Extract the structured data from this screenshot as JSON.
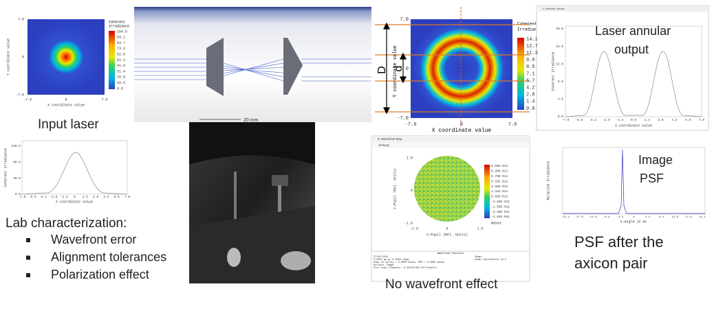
{
  "input_map": {
    "title": [
      "Coherent",
      "Irradiance"
    ],
    "colorbar": [
      "104.6",
      "94.1",
      "83.7",
      "73.2",
      "62.8",
      "52.3",
      "41.8",
      "31.4",
      "20.9",
      "10.5",
      "0.0"
    ],
    "y_ticks": [
      "7.0",
      "0",
      "-7.0"
    ],
    "x_ticks": [
      "-7.0",
      "0",
      "7.0"
    ],
    "x_label": "X coordinate value",
    "y_label": "Y coordinate value"
  },
  "ray_trace": {
    "scale": "20 mm"
  },
  "annular_map": {
    "title": [
      "Coherent",
      "Irradiance"
    ],
    "colorbar": [
      "14.1",
      "12.7",
      "11.3",
      "9.9",
      "8.5",
      "7.1",
      "5.7",
      "4.2",
      "2.8",
      "1.4",
      "0.0"
    ],
    "y_ticks": [
      "7.0",
      "0",
      "-7.0"
    ],
    "x_ticks": [
      "-7.0",
      "0",
      "7.0"
    ],
    "x_label": "X coordinate value",
    "y_label": "Y coordinate value",
    "outer_label": "D",
    "inner_label": "d"
  },
  "annular_profile": {
    "window_title": "1: Detector Viewer",
    "caption": [
      "Laser annular",
      "output"
    ],
    "y_ticks": [
      "20.0",
      "16.0",
      "12.0",
      "8.0",
      "4.0",
      "0.0"
    ],
    "x_ticks": [
      "-7.0",
      "-5.6",
      "-4.2",
      "-2.8",
      "-1.4",
      "0.0",
      "1.4",
      "2.8",
      "4.2",
      "5.6",
      "7.0"
    ],
    "y_label": "Coherent Irradiance",
    "x_label": "X coordinate value"
  },
  "input_profile": {
    "caption": "Input laser",
    "y_ticks": [
      "120.0",
      "80.0",
      "40.0",
      "0.0"
    ],
    "x_ticks": [
      "-7.0",
      "-5.6",
      "-4.2",
      "-2.8",
      "-1.4",
      "0",
      "1.4",
      "2.8",
      "4.2",
      "5.6",
      "7.0"
    ],
    "y_label": "Coherent Irradiance",
    "x_label": "X coordinate value"
  },
  "lab": {
    "heading": "Lab characterization:",
    "items": [
      "Wavefront error",
      "Alignment tolerances",
      "Polarization effect"
    ]
  },
  "wavefront": {
    "window_title": "5: Wavefront Map",
    "toolbar": "Settings",
    "colorbar": [
      "9.65E-011",
      "8.20E-011",
      "6.76E-011",
      "5.31E-011",
      "3.86E-011",
      "2.41E-011",
      "9.65E-012",
      "-4.83E-012",
      "-1.93E-011",
      "-3.38E-011",
      "-4.83E-011"
    ],
    "units": "Waves",
    "y_ticks": [
      "1.0",
      "0",
      "-1.0"
    ],
    "x_ticks": [
      "-1.0",
      "0",
      "1.0"
    ],
    "x_label": "X-Pupil (Rel. Units)",
    "y_label": "Y-Pupil (Rel. Units)",
    "footer_title": "Wavefront Function",
    "footer_left": [
      "27/02/2016",
      "0.5600 µm at 0.0000 (deg)",
      "Peak to valley = 0.0000 waves, RMS = 0.0000 waves.",
      "Surface: Image",
      "Exit Pupil Diameter: 6.4823E+001 Millimeters"
    ],
    "footer_right": [
      "Zemax",
      "Zemax OpticStudio 15.5"
    ],
    "caption": "No wavefront effect"
  },
  "psf": {
    "caption": [
      "Image",
      "PSF"
    ],
    "y_label": "Relative Irradiance",
    "x_label": "X-Angle in mr",
    "x_ticks": [
      "-21.1",
      "-17.0",
      "-12.6",
      "-8.4",
      "-4.2",
      "0",
      "4.2",
      "8.4",
      "12.6",
      "17.0",
      "21.1"
    ],
    "note": [
      "PSF after the",
      "axicon pair"
    ]
  }
}
